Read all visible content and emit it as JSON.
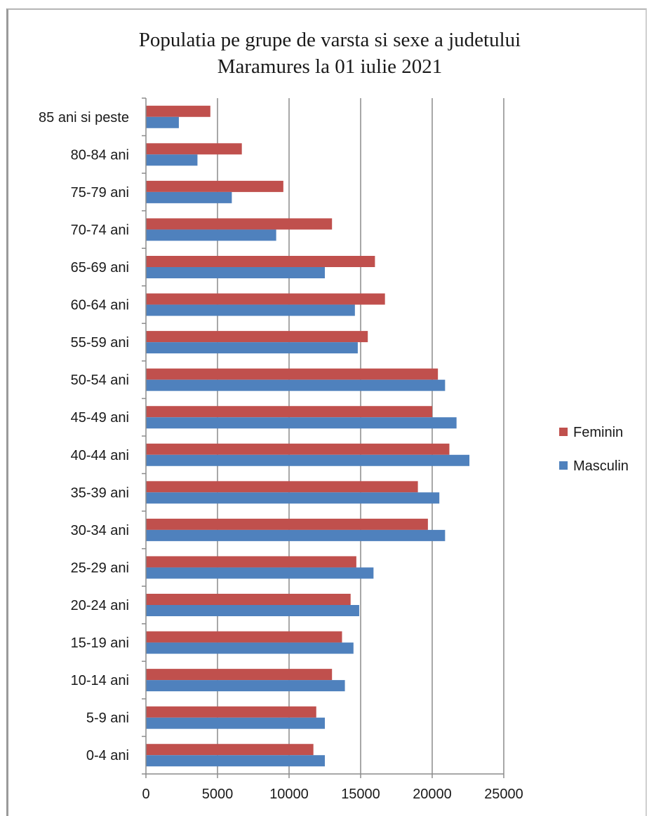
{
  "chart_data": {
    "type": "bar",
    "orientation": "horizontal",
    "title": [
      "Populatia pe grupe de varsta si sexe a judetului",
      "Maramures la 01 iulie 2021"
    ],
    "categories": [
      "85 ani si peste",
      "80-84 ani",
      "75-79 ani",
      "70-74 ani",
      "65-69 ani",
      "60-64 ani",
      "55-59 ani",
      "50-54 ani",
      "45-49 ani",
      "40-44 ani",
      "35-39 ani",
      "30-34 ani",
      "25-29 ani",
      "20-24 ani",
      "15-19 ani",
      "10-14 ani",
      "5-9 ani",
      "0-4 ani"
    ],
    "series": [
      {
        "name": "Feminin",
        "color": "#c0504d",
        "values": [
          4500,
          6700,
          9600,
          13000,
          16000,
          16700,
          15500,
          20400,
          20000,
          21200,
          19000,
          19700,
          14700,
          14300,
          13700,
          13000,
          11900,
          11700
        ]
      },
      {
        "name": "Masculin",
        "color": "#4f81bd",
        "values": [
          2300,
          3600,
          6000,
          9100,
          12500,
          14600,
          14800,
          20900,
          21700,
          22600,
          20500,
          20900,
          15900,
          14900,
          14500,
          13900,
          12500,
          12500
        ]
      }
    ],
    "xlim": [
      0,
      25000
    ],
    "xticks": [
      "0",
      "5000",
      "10000",
      "15000",
      "20000",
      "25000"
    ],
    "grid": "vertical",
    "legend": "right"
  }
}
